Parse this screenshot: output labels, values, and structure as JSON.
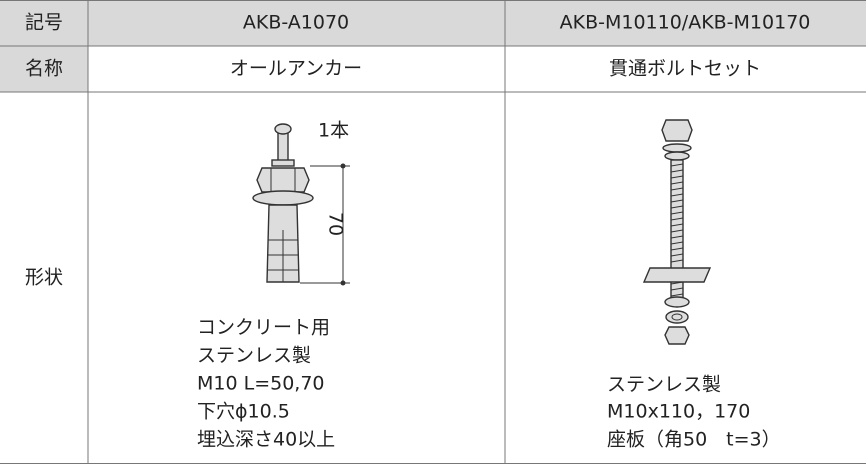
{
  "table": {
    "rows": [
      [
        "記号",
        "AKB-A1070",
        "AKB-M10110/AKB-M10170"
      ],
      [
        "名称",
        "オールアンカー",
        "貫通ボルトセット"
      ]
    ],
    "shape": {
      "label": "形状",
      "anchor": {
        "count_label": "1本",
        "dimension": "70",
        "notes": [
          "コンクリート用",
          "ステンレス製",
          "M10 L=50,70",
          "下穴ϕ10.5",
          "埋込深さ40以上"
        ]
      },
      "bolt": {
        "notes": [
          "ステンレス製",
          "M10x110，170",
          "座板（角50　t=3）"
        ]
      }
    }
  }
}
